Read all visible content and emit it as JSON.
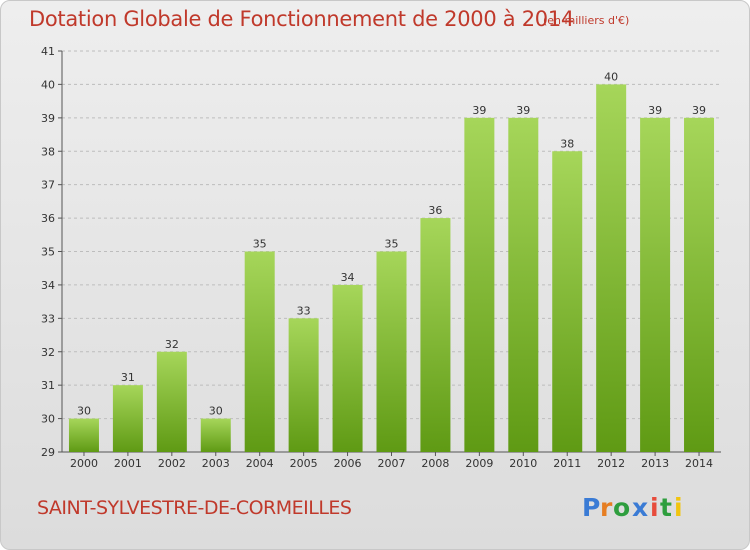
{
  "title": "Dotation Globale de Fonctionnement de 2000 à 2014",
  "subtitle": "(en milliers d'€)",
  "commune": "SAINT-SYLVESTRE-DE-CORMEILLES",
  "logo": {
    "text": "Proxiti"
  },
  "colors": {
    "title": "#c0392b",
    "bar_top": "#a6d65a",
    "bar_bottom": "#5f9a14",
    "grid": "#bdbdbd"
  },
  "chart_data": {
    "type": "bar",
    "title": "Dotation Globale de Fonctionnement de 2000 à 2014",
    "subtitle": "(en milliers d'€)",
    "xlabel": "",
    "ylabel": "",
    "categories": [
      "2000",
      "2001",
      "2002",
      "2003",
      "2004",
      "2005",
      "2006",
      "2007",
      "2008",
      "2009",
      "2010",
      "2011",
      "2012",
      "2013",
      "2014"
    ],
    "values": [
      30,
      31,
      32,
      30,
      35,
      33,
      34,
      35,
      36,
      39,
      39,
      38,
      40,
      39,
      39
    ],
    "ylim": [
      29,
      41
    ],
    "yticks": [
      29,
      30,
      31,
      32,
      33,
      34,
      35,
      36,
      37,
      38,
      39,
      40,
      41
    ],
    "grid": "horizontal dashed",
    "legend": "none"
  }
}
